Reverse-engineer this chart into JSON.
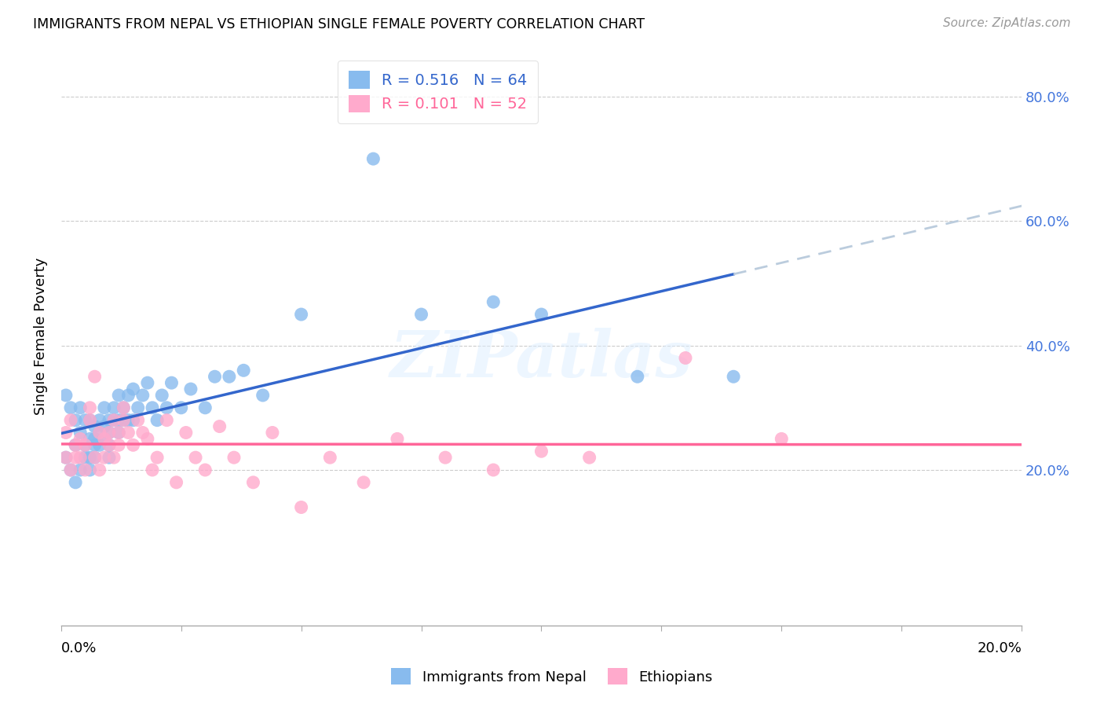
{
  "title": "IMMIGRANTS FROM NEPAL VS ETHIOPIAN SINGLE FEMALE POVERTY CORRELATION CHART",
  "source": "Source: ZipAtlas.com",
  "ylabel": "Single Female Poverty",
  "x_range": [
    0.0,
    0.2
  ],
  "y_range": [
    -0.05,
    0.88
  ],
  "nepal_color": "#88BBEE",
  "ethiopian_color": "#FFAACC",
  "nepal_line_color": "#3366CC",
  "ethiopian_line_color": "#FF6699",
  "trendline_ext_color": "#BBCCDD",
  "watermark": "ZIPatlas",
  "nepal_R": "0.516",
  "nepal_N": "64",
  "ethiopian_R": "0.101",
  "ethiopian_N": "52",
  "nepal_scatter_x": [
    0.001,
    0.001,
    0.002,
    0.002,
    0.003,
    0.003,
    0.003,
    0.004,
    0.004,
    0.004,
    0.005,
    0.005,
    0.005,
    0.006,
    0.006,
    0.006,
    0.006,
    0.007,
    0.007,
    0.007,
    0.007,
    0.008,
    0.008,
    0.008,
    0.009,
    0.009,
    0.009,
    0.01,
    0.01,
    0.01,
    0.01,
    0.011,
    0.011,
    0.012,
    0.012,
    0.012,
    0.013,
    0.013,
    0.014,
    0.014,
    0.015,
    0.015,
    0.016,
    0.017,
    0.018,
    0.019,
    0.02,
    0.021,
    0.022,
    0.023,
    0.025,
    0.027,
    0.03,
    0.032,
    0.035,
    0.038,
    0.042,
    0.05,
    0.065,
    0.075,
    0.09,
    0.1,
    0.12,
    0.14
  ],
  "nepal_scatter_y": [
    0.22,
    0.32,
    0.2,
    0.3,
    0.24,
    0.28,
    0.18,
    0.26,
    0.3,
    0.2,
    0.24,
    0.28,
    0.22,
    0.25,
    0.28,
    0.22,
    0.2,
    0.24,
    0.27,
    0.25,
    0.22,
    0.26,
    0.28,
    0.24,
    0.27,
    0.25,
    0.3,
    0.26,
    0.28,
    0.24,
    0.22,
    0.3,
    0.28,
    0.32,
    0.28,
    0.26,
    0.3,
    0.28,
    0.32,
    0.28,
    0.33,
    0.28,
    0.3,
    0.32,
    0.34,
    0.3,
    0.28,
    0.32,
    0.3,
    0.34,
    0.3,
    0.33,
    0.3,
    0.35,
    0.35,
    0.36,
    0.32,
    0.45,
    0.7,
    0.45,
    0.47,
    0.45,
    0.35,
    0.35
  ],
  "ethiopian_scatter_x": [
    0.001,
    0.001,
    0.002,
    0.002,
    0.003,
    0.003,
    0.004,
    0.004,
    0.005,
    0.005,
    0.006,
    0.006,
    0.007,
    0.007,
    0.008,
    0.008,
    0.009,
    0.009,
    0.01,
    0.01,
    0.011,
    0.011,
    0.012,
    0.012,
    0.013,
    0.013,
    0.014,
    0.015,
    0.016,
    0.017,
    0.018,
    0.019,
    0.02,
    0.022,
    0.024,
    0.026,
    0.028,
    0.03,
    0.033,
    0.036,
    0.04,
    0.044,
    0.05,
    0.056,
    0.063,
    0.07,
    0.08,
    0.09,
    0.1,
    0.11,
    0.13,
    0.15
  ],
  "ethiopian_scatter_y": [
    0.22,
    0.26,
    0.2,
    0.28,
    0.24,
    0.22,
    0.25,
    0.22,
    0.2,
    0.24,
    0.28,
    0.3,
    0.35,
    0.22,
    0.2,
    0.26,
    0.22,
    0.25,
    0.24,
    0.26,
    0.22,
    0.28,
    0.26,
    0.24,
    0.28,
    0.3,
    0.26,
    0.24,
    0.28,
    0.26,
    0.25,
    0.2,
    0.22,
    0.28,
    0.18,
    0.26,
    0.22,
    0.2,
    0.27,
    0.22,
    0.18,
    0.26,
    0.14,
    0.22,
    0.18,
    0.25,
    0.22,
    0.2,
    0.23,
    0.22,
    0.38,
    0.25
  ]
}
